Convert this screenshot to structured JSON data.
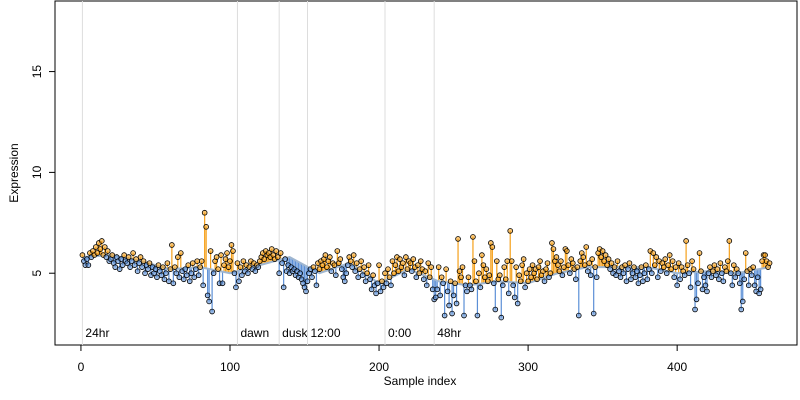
{
  "chart_data": {
    "type": "scatter",
    "xlabel": "Sample index",
    "ylabel": "Expression",
    "xlim": [
      -17.4,
      480.4
    ],
    "xticks": [
      0,
      100,
      200,
      300,
      400
    ],
    "ylim": [
      1.44,
      18.5
    ],
    "yticks": [
      5,
      10,
      15
    ],
    "point_color": "#000000",
    "above_color": "#f5a01a",
    "below_color": "#5b8fd6",
    "fit_color": "#9fb6d0",
    "marker_color": "#dddddd",
    "marker_text_color": "#aaaaaa",
    "markers": [
      {
        "x": 1,
        "label": "24hr"
      },
      {
        "x": 105,
        "label": "dawn"
      },
      {
        "x": 133,
        "label": "dusk"
      },
      {
        "x": 152,
        "label": "12:00"
      },
      {
        "x": 204,
        "label": "0:00"
      },
      {
        "x": 237,
        "label": "48hr"
      }
    ],
    "fit": {
      "x": [
        1,
        20,
        40,
        60,
        80,
        100,
        120,
        140,
        160,
        180,
        200,
        220,
        240,
        260,
        280,
        300,
        320,
        340,
        360,
        380,
        400,
        420,
        440,
        462
      ],
      "y": [
        5.8,
        5.9,
        5.6,
        5.2,
        5.3,
        5.0,
        5.4,
        5.8,
        5.0,
        5.5,
        4.5,
        5.2,
        4.6,
        4.4,
        4.6,
        4.5,
        5.0,
        5.3,
        5.3,
        5.3,
        5.0,
        5.1,
        5.0,
        5.3
      ]
    },
    "values": [
      5.9,
      5.6,
      5.4,
      5.7,
      5.4,
      6.0,
      5.8,
      6.1,
      5.9,
      6.3,
      6.0,
      6.5,
      6.2,
      6.6,
      5.9,
      6.3,
      5.8,
      6.1,
      5.6,
      5.7,
      5.9,
      5.5,
      5.3,
      5.8,
      5.6,
      5.2,
      5.7,
      5.4,
      5.9,
      5.6,
      5.5,
      5.8,
      5.3,
      5.6,
      6.0,
      5.4,
      5.7,
      5.1,
      5.5,
      5.8,
      5.3,
      5.6,
      5.0,
      5.4,
      5.2,
      5.5,
      4.9,
      5.3,
      5.0,
      5.2,
      4.8,
      5.4,
      5.1,
      4.9,
      5.3,
      4.7,
      5.0,
      5.5,
      4.6,
      5.2,
      6.4,
      4.5,
      5.3,
      5.0,
      5.8,
      4.8,
      6.0,
      5.1,
      4.7,
      5.2,
      4.9,
      5.4,
      4.6,
      5.0,
      5.5,
      4.8,
      5.2,
      5.6,
      4.9,
      5.3,
      5.6,
      4.4,
      8.0,
      7.3,
      3.9,
      3.6,
      6.1,
      3.1,
      5.0,
      5.6,
      5.8,
      5.2,
      4.5,
      5.9,
      4.5,
      5.4,
      5.7,
      6.0,
      5.3,
      5.6,
      6.4,
      6.1,
      5.0,
      4.3,
      5.5,
      4.6,
      5.3,
      4.9,
      5.6,
      5.1,
      5.4,
      5.0,
      5.3,
      5.6,
      5.2,
      5.5,
      5.1,
      5.4,
      5.3,
      5.6,
      5.8,
      6.0,
      5.7,
      6.1,
      5.9,
      6.0,
      5.8,
      6.2,
      5.9,
      5.7,
      6.1,
      5.8,
      5.0,
      6.0,
      5.5,
      4.3,
      5.7,
      5.1,
      5.4,
      5.0,
      5.3,
      5.1,
      5.2,
      4.9,
      5.1,
      4.8,
      5.0,
      4.7,
      4.5,
      4.3,
      4.1,
      4.6,
      5.0,
      5.2,
      4.8,
      5.3,
      5.1,
      4.4,
      5.5,
      5.2,
      5.6,
      5.4,
      5.7,
      5.9,
      5.3,
      5.6,
      5.8,
      5.1,
      5.5,
      5.4,
      4.9,
      6.1,
      5.5,
      5.7,
      5.2,
      4.8,
      4.6,
      5.0,
      5.4,
      5.8,
      5.6,
      5.3,
      5.9,
      5.1,
      5.5,
      4.8,
      5.2,
      5.6,
      4.9,
      5.3,
      4.6,
      5.0,
      5.4,
      4.7,
      4.2,
      4.9,
      4.4,
      4.0,
      4.5,
      5.4,
      4.1,
      4.6,
      4.3,
      5.0,
      4.5,
      5.2,
      4.8,
      4.4,
      5.6,
      5.0,
      5.4,
      5.8,
      5.1,
      5.7,
      5.3,
      5.5,
      4.9,
      5.8,
      5.2,
      5.6,
      5.5,
      5.1,
      5.7,
      5.3,
      4.8,
      5.4,
      5.0,
      5.6,
      5.2,
      4.7,
      5.1,
      4.4,
      5.5,
      4.8,
      5.3,
      4.2,
      3.7,
      3.8,
      4.2,
      5.3,
      3.9,
      4.8,
      4.5,
      2.9,
      5.2,
      4.1,
      3.4,
      4.6,
      3.0,
      3.9,
      4.5,
      3.5,
      6.7,
      5.1,
      4.8,
      5.3,
      2.9,
      4.4,
      4.1,
      4.8,
      4.4,
      4.2,
      6.8,
      5.6,
      4.6,
      2.9,
      5.0,
      4.3,
      5.9,
      5.4,
      4.8,
      5.2,
      4.6,
      4.9,
      6.5,
      6.3,
      4.5,
      3.2,
      5.6,
      4.7,
      4.9,
      2.8,
      4.4,
      5.3,
      4.7,
      5.6,
      4.0,
      7.1,
      5.6,
      4.4,
      3.8,
      5.3,
      3.5,
      4.9,
      4.6,
      5.4,
      5.7,
      4.3,
      5.0,
      4.6,
      5.2,
      4.8,
      5.4,
      5.0,
      5.2,
      4.7,
      5.3,
      5.6,
      4.9,
      5.1,
      4.6,
      5.2,
      5.5,
      4.8,
      5.0,
      6.5,
      6.2,
      5.6,
      5.8,
      5.4,
      5.1,
      5.6,
      4.9,
      5.3,
      6.2,
      6.1,
      5.4,
      5.0,
      5.7,
      5.5,
      5.2,
      4.7,
      5.3,
      2.9,
      5.6,
      6.0,
      5.8,
      5.4,
      6.3,
      5.1,
      5.5,
      4.9,
      5.7,
      3.0,
      5.3,
      4.8,
      6.0,
      6.2,
      5.8,
      6.1,
      5.6,
      5.9,
      5.4,
      5.7,
      5.2,
      5.5,
      5.0,
      5.3,
      4.9,
      5.6,
      5.1,
      4.8,
      5.3,
      5.0,
      5.4,
      4.6,
      5.2,
      5.5,
      4.7,
      5.0,
      5.3,
      4.8,
      5.1,
      4.5,
      4.9,
      5.3,
      4.6,
      5.0,
      5.4,
      4.7,
      5.2,
      6.1,
      5.0,
      6.0,
      5.4,
      5.8,
      4.8,
      5.6,
      5.1,
      5.5,
      5.3,
      5.7,
      5.0,
      5.4,
      5.9,
      5.2,
      5.6,
      4.8,
      5.3,
      4.4,
      5.5,
      4.7,
      5.3,
      5.1,
      4.9,
      6.6,
      5.4,
      5.0,
      4.3,
      5.6,
      5.2,
      3.2,
      3.7,
      4.5,
      6.0,
      5.1,
      4.2,
      4.8,
      4.4,
      4.1,
      5.0,
      5.3,
      4.8,
      5.1,
      5.4,
      4.9,
      5.2,
      4.7,
      5.5,
      5.0,
      4.6,
      5.3,
      5.1,
      5.6,
      6.6,
      5.0,
      4.4,
      5.4,
      4.8,
      5.2,
      5.0,
      4.5,
      3.2,
      3.6,
      4.7,
      6.0,
      5.1,
      4.4,
      5.2,
      4.9,
      5.3,
      4.4,
      4.1,
      4.8,
      4.0,
      4.2,
      5.6,
      5.9,
      5.9,
      5.6,
      5.3,
      5.5
    ]
  }
}
